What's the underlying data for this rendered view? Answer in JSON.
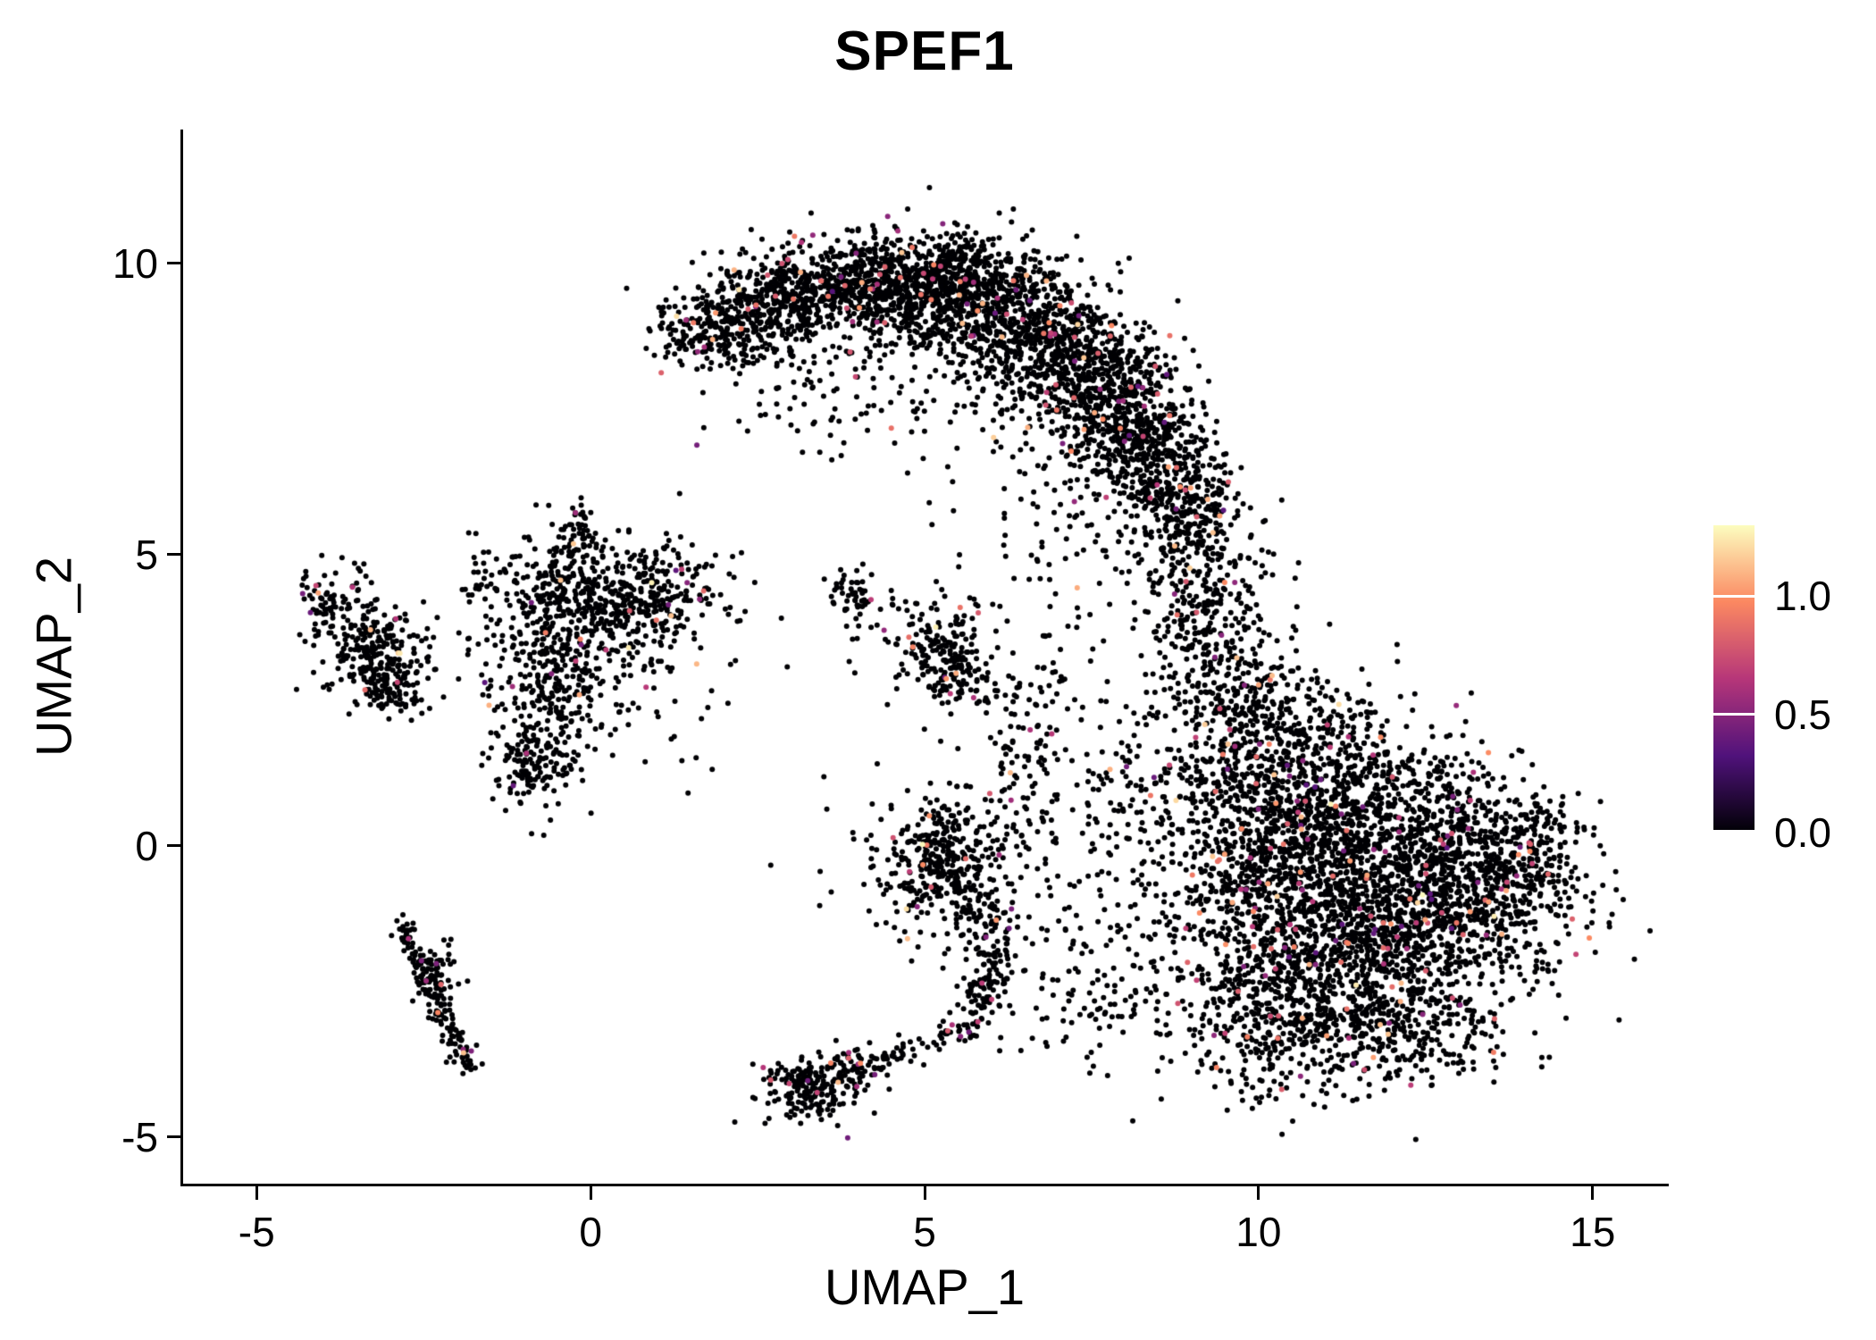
{
  "figure": {
    "background": "#ffffff"
  },
  "chart_data": {
    "type": "scatter",
    "title": "SPEF1",
    "xlabel": "UMAP_1",
    "ylabel": "UMAP_2",
    "xlim": [
      -6.1,
      16.1
    ],
    "ylim": [
      -5.8,
      12.3
    ],
    "grid": false,
    "xticks": [
      {
        "value": -5,
        "label": "-5"
      },
      {
        "value": 0,
        "label": "0"
      },
      {
        "value": 5,
        "label": "5"
      },
      {
        "value": 10,
        "label": "10"
      },
      {
        "value": 15,
        "label": "15"
      }
    ],
    "yticks": [
      {
        "value": -5,
        "label": "-5"
      },
      {
        "value": 0,
        "label": "0"
      },
      {
        "value": 5,
        "label": "5"
      },
      {
        "value": 10,
        "label": "10"
      }
    ],
    "legend": {
      "position": "right",
      "vmin": 0,
      "vmax": 1.3,
      "ticks": [
        {
          "value": 1.0,
          "label": "1.0"
        },
        {
          "value": 0.5,
          "label": "0.5"
        },
        {
          "value": 0.0,
          "label": "0.0"
        }
      ]
    },
    "colormap": {
      "name": "magma",
      "stops": [
        {
          "t": 0.0,
          "color": "#000004"
        },
        {
          "t": 0.25,
          "color": "#50127b"
        },
        {
          "t": 0.5,
          "color": "#b63679"
        },
        {
          "t": 0.75,
          "color": "#fb8861"
        },
        {
          "t": 1.0,
          "color": "#fcfdbf"
        }
      ]
    },
    "point_style": {
      "radius_px": 3,
      "zero_expression_color": "#000004"
    },
    "value_distribution": [
      {
        "p": 0.962,
        "range": [
          0,
          0
        ]
      },
      {
        "p": 0.026,
        "range": [
          0.35,
          0.9
        ]
      },
      {
        "p": 0.009,
        "range": [
          0.9,
          1.15
        ]
      },
      {
        "p": 0.003,
        "range": [
          1.15,
          1.3
        ]
      }
    ],
    "seed": 11,
    "clusters": [
      {
        "cx": 1.45,
        "cy": 8.75,
        "sx": 0.28,
        "sy": 0.22,
        "n": 70
      },
      {
        "cx": 2.1,
        "cy": 9.0,
        "sx": 0.45,
        "sy": 0.4,
        "n": 200
      },
      {
        "cx": 2.9,
        "cy": 9.4,
        "sx": 0.5,
        "sy": 0.45,
        "n": 300
      },
      {
        "cx": 3.9,
        "cy": 9.6,
        "sx": 0.55,
        "sy": 0.45,
        "n": 380
      },
      {
        "cx": 4.9,
        "cy": 9.6,
        "sx": 0.55,
        "sy": 0.45,
        "n": 420
      },
      {
        "cx": 5.7,
        "cy": 9.9,
        "sx": 0.5,
        "sy": 0.3,
        "n": 150
      },
      {
        "cx": 5.9,
        "cy": 9.2,
        "sx": 0.6,
        "sy": 0.55,
        "n": 480
      },
      {
        "cx": 6.9,
        "cy": 8.6,
        "sx": 0.55,
        "sy": 0.6,
        "n": 450
      },
      {
        "cx": 7.7,
        "cy": 7.9,
        "sx": 0.5,
        "sy": 0.6,
        "n": 420
      },
      {
        "cx": 8.3,
        "cy": 7.0,
        "sx": 0.45,
        "sy": 0.6,
        "n": 350
      },
      {
        "cx": 8.8,
        "cy": 6.1,
        "sx": 0.4,
        "sy": 0.55,
        "n": 250
      },
      {
        "cx": 5.0,
        "cy": 8.2,
        "sx": 1.6,
        "sy": 0.7,
        "n": 130
      },
      {
        "cx": 3.1,
        "cy": 7.9,
        "sx": 0.7,
        "sy": 0.6,
        "n": 60
      },
      {
        "cx": 7.2,
        "cy": 6.6,
        "sx": 0.8,
        "sy": 0.7,
        "n": 80
      },
      {
        "cx": 9.2,
        "cy": 4.9,
        "sx": 0.45,
        "sy": 0.7,
        "n": 160
      },
      {
        "cx": 9.3,
        "cy": 3.6,
        "sx": 0.5,
        "sy": 0.7,
        "n": 170
      },
      {
        "cx": 9.6,
        "cy": 2.4,
        "sx": 0.45,
        "sy": 0.8,
        "n": 160
      },
      {
        "cx": 8.6,
        "cy": 4.4,
        "sx": 0.8,
        "sy": 0.9,
        "n": 60
      },
      {
        "cx": 10.4,
        "cy": 0.8,
        "sx": 0.8,
        "sy": 0.9,
        "n": 450
      },
      {
        "cx": 11.2,
        "cy": -0.3,
        "sx": 1.1,
        "sy": 0.9,
        "n": 800
      },
      {
        "cx": 12.4,
        "cy": -1.2,
        "sx": 1.0,
        "sy": 0.9,
        "n": 750
      },
      {
        "cx": 11.0,
        "cy": -2.0,
        "sx": 1.0,
        "sy": 0.8,
        "n": 500
      },
      {
        "cx": 13.4,
        "cy": -0.6,
        "sx": 0.8,
        "sy": 0.8,
        "n": 400
      },
      {
        "cx": 14.1,
        "cy": 0.0,
        "sx": 0.4,
        "sy": 0.5,
        "n": 140
      },
      {
        "cx": 10.3,
        "cy": -3.1,
        "sx": 0.8,
        "sy": 0.6,
        "n": 280
      },
      {
        "cx": 11.9,
        "cy": -3.2,
        "sx": 0.9,
        "sy": 0.5,
        "n": 280
      },
      {
        "cx": 9.7,
        "cy": -1.0,
        "sx": 0.6,
        "sy": 1.0,
        "n": 260
      },
      {
        "cx": 10.6,
        "cy": 2.0,
        "sx": 0.7,
        "sy": 0.6,
        "n": 200
      },
      {
        "cx": 12.0,
        "cy": 0.9,
        "sx": 0.9,
        "sy": 0.6,
        "n": 300
      },
      {
        "cx": -0.4,
        "cy": 4.5,
        "sx": 0.75,
        "sy": 0.45,
        "n": 240
      },
      {
        "cx": 0.4,
        "cy": 4.0,
        "sx": 0.7,
        "sy": 0.55,
        "n": 220
      },
      {
        "cx": -0.5,
        "cy": 3.1,
        "sx": 0.55,
        "sy": 0.6,
        "n": 200
      },
      {
        "cx": -0.75,
        "cy": 2.0,
        "sx": 0.35,
        "sy": 0.55,
        "n": 130
      },
      {
        "cx": -0.9,
        "cy": 1.2,
        "sx": 0.28,
        "sy": 0.35,
        "n": 80
      },
      {
        "cx": 1.1,
        "cy": 4.4,
        "sx": 0.5,
        "sy": 0.4,
        "n": 130
      },
      {
        "cx": -0.15,
        "cy": 5.4,
        "sx": 0.2,
        "sy": 0.35,
        "n": 50
      },
      {
        "cx": 0.2,
        "cy": 3.4,
        "sx": 1.2,
        "sy": 1.1,
        "n": 110
      },
      {
        "cx": -3.25,
        "cy": 3.3,
        "sx": 0.4,
        "sy": 0.45,
        "n": 220
      },
      {
        "cx": -3.85,
        "cy": 4.25,
        "sx": 0.28,
        "sy": 0.3,
        "n": 80
      },
      {
        "cx": -2.9,
        "cy": 2.65,
        "sx": 0.3,
        "sy": 0.28,
        "n": 80
      },
      {
        "cx": 3.95,
        "cy": 4.3,
        "sx": 0.2,
        "sy": 0.25,
        "n": 50
      },
      {
        "cx": 5.3,
        "cy": 3.3,
        "sx": 0.32,
        "sy": 0.42,
        "n": 150
      },
      {
        "cx": 5.6,
        "cy": 2.75,
        "sx": 0.3,
        "sy": 0.3,
        "n": 60
      },
      {
        "cx": 4.6,
        "cy": 3.9,
        "sx": 0.5,
        "sy": 0.4,
        "n": 35
      },
      {
        "shape": "line",
        "x1": -2.85,
        "y1": -1.35,
        "x2": -1.8,
        "y2": -3.85,
        "jx": 0.09,
        "jy": 0.12,
        "n": 150
      },
      {
        "cx": -2.35,
        "cy": -2.2,
        "sx": 0.18,
        "sy": 0.25,
        "n": 60
      },
      {
        "cx": 3.25,
        "cy": -4.15,
        "sx": 0.33,
        "sy": 0.27,
        "n": 170
      },
      {
        "cx": 3.9,
        "cy": -3.85,
        "sx": 0.3,
        "sy": 0.22,
        "n": 80
      },
      {
        "shape": "line",
        "x1": 4.2,
        "y1": -3.75,
        "x2": 5.9,
        "y2": -3.0,
        "jx": 0.15,
        "jy": 0.15,
        "n": 70
      },
      {
        "cx": 5.25,
        "cy": -0.25,
        "sx": 0.42,
        "sy": 0.48,
        "n": 300
      },
      {
        "cx": 5.3,
        "cy": -0.3,
        "sx": 0.9,
        "sy": 0.9,
        "n": 90
      },
      {
        "cx": 5.95,
        "cy": -1.2,
        "sx": 0.3,
        "sy": 0.4,
        "n": 90
      },
      {
        "shape": "line",
        "x1": 6.1,
        "y1": -1.8,
        "x2": 5.8,
        "y2": -2.9,
        "jx": 0.18,
        "jy": 0.2,
        "n": 90
      },
      {
        "cx": 6.4,
        "cy": 1.2,
        "sx": 0.3,
        "sy": 0.8,
        "n": 70
      },
      {
        "cx": 6.7,
        "cy": 2.6,
        "sx": 0.3,
        "sy": 0.6,
        "n": 50
      },
      {
        "cx": 7.9,
        "cy": -0.6,
        "sx": 0.8,
        "sy": 1.1,
        "n": 150
      },
      {
        "cx": 8.4,
        "cy": 1.4,
        "sx": 0.6,
        "sy": 0.9,
        "n": 100
      },
      {
        "cx": 7.3,
        "cy": -2.6,
        "sx": 0.6,
        "sy": 0.6,
        "n": 80
      },
      {
        "cx": 7.0,
        "cy": 4.6,
        "sx": 0.9,
        "sy": 0.8,
        "n": 50
      }
    ]
  }
}
